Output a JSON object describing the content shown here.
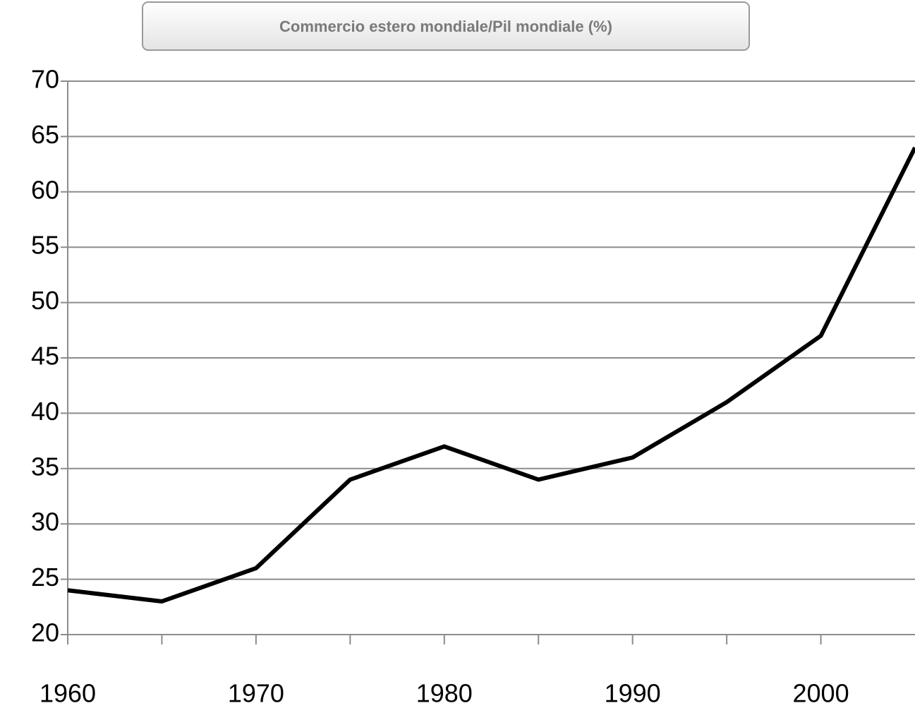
{
  "chart_data": {
    "type": "line",
    "title": "Commercio estero mondiale/Pil mondiale (%)",
    "x": [
      1960,
      1965,
      1970,
      1975,
      1980,
      1985,
      1990,
      1995,
      2000,
      2005
    ],
    "series": [
      {
        "name": "Commercio estero mondiale/Pil mondiale",
        "color": "#000000",
        "values": [
          24,
          23,
          26,
          34,
          37,
          34,
          36,
          41,
          47,
          64
        ]
      }
    ],
    "xlim": [
      1960,
      2005
    ],
    "xticks": [
      1960,
      1970,
      1980,
      1990,
      2000
    ],
    "xminor_ticks": [
      1965,
      1975,
      1985,
      1995
    ],
    "ylim": [
      20,
      70
    ],
    "yticks": [
      20,
      25,
      30,
      35,
      40,
      45,
      50,
      55,
      60,
      65,
      70
    ],
    "grid": true
  }
}
